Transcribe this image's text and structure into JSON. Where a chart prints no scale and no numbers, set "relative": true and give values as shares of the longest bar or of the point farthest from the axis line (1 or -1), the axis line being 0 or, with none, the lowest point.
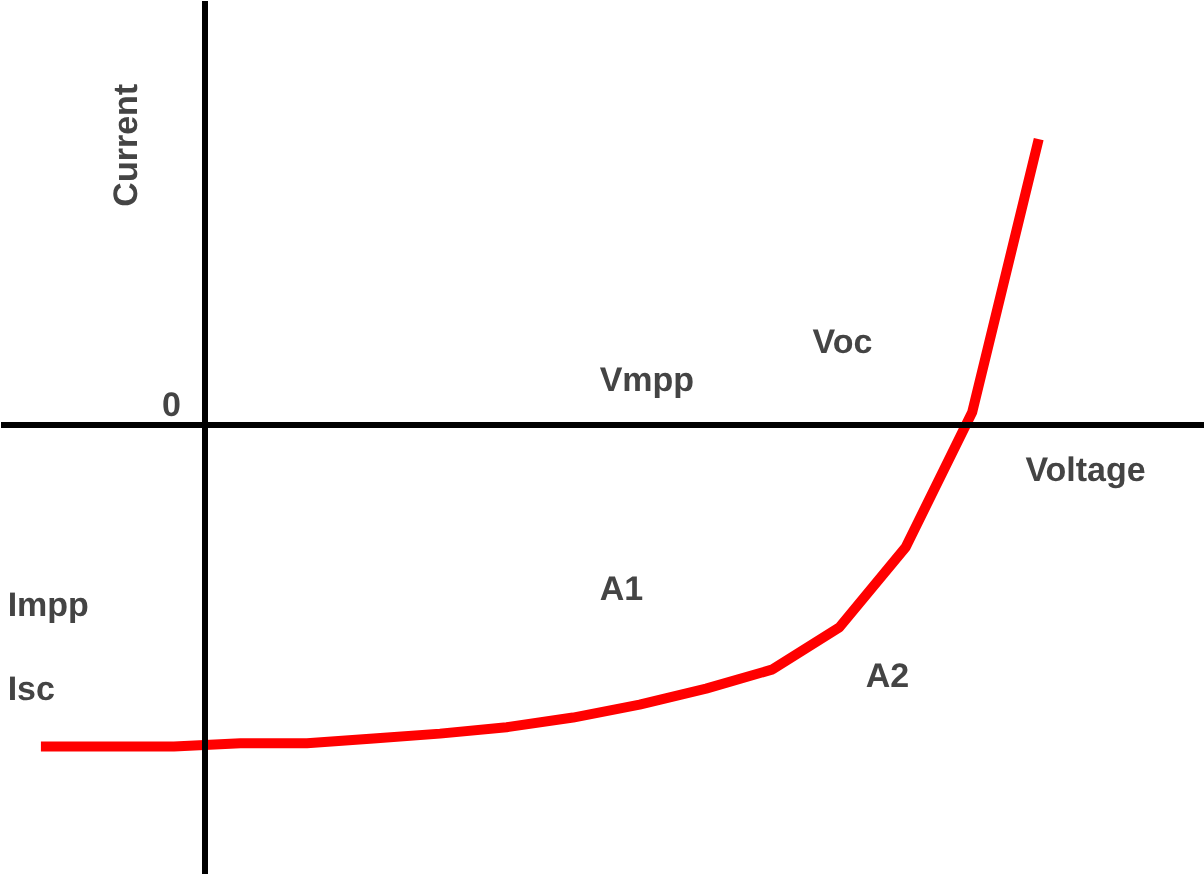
{
  "chart_data": {
    "type": "line",
    "relative": true,
    "xlabel": "Voltage",
    "ylabel": "Current",
    "grid": false,
    "categories": [
      null,
      null,
      null,
      null,
      null,
      null,
      null,
      null,
      null,
      null,
      null,
      null,
      null,
      null,
      null,
      null
    ],
    "series": [
      {
        "color": "#ff0000",
        "values": [
          -1.0,
          -1.0,
          -1.0,
          -0.99,
          -0.99,
          -0.975,
          -0.96,
          -0.94,
          -0.91,
          -0.87,
          -0.82,
          -0.76,
          -0.63,
          -0.38,
          0.04,
          0.89
        ]
      }
    ],
    "annotations": [
      "0",
      "Vmpp",
      "Voc",
      "Impp",
      "Isc",
      "A1",
      "A2"
    ]
  }
}
